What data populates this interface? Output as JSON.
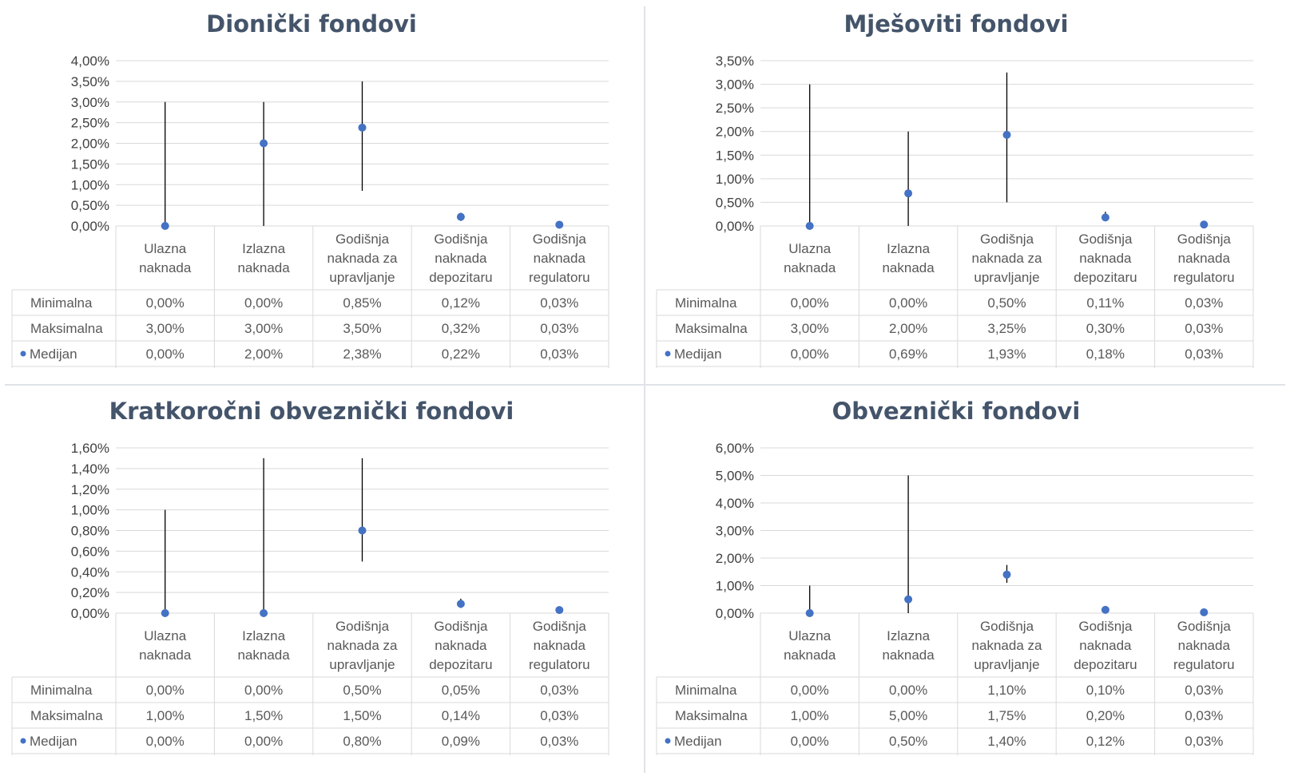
{
  "colors": {
    "marker": "#4472c4",
    "whisker": "#000000",
    "grid": "#d9d9d9",
    "title": "#44546a"
  },
  "row_labels": [
    "Minimalna",
    "Maksimalna",
    "Medijan"
  ],
  "chart_data": [
    {
      "type": "scatter",
      "title": "Dionički fondovi",
      "categories": [
        "Ulazna|naknada",
        "Izlazna|naknada",
        "Godišnja|naknada za|upravljanje",
        "Godišnja|naknada|depozitaru",
        "Godišnja|naknada|regulatoru"
      ],
      "ylim": [
        0,
        4.0
      ],
      "ystep": 0.5,
      "decimals": 2,
      "min": [
        0.0,
        0.0,
        0.85,
        0.12,
        0.03
      ],
      "max": [
        3.0,
        3.0,
        3.5,
        0.32,
        0.03
      ],
      "median": [
        0.0,
        2.0,
        2.38,
        0.22,
        0.03
      ],
      "grid": true,
      "legend": "table"
    },
    {
      "type": "scatter",
      "title": "Mješoviti fondovi",
      "categories": [
        "Ulazna|naknada",
        "Izlazna|naknada",
        "Godišnja|naknada za|upravljanje",
        "Godišnja|naknada|depozitaru",
        "Godišnja|naknada|regulatoru"
      ],
      "ylim": [
        0,
        3.5
      ],
      "ystep": 0.5,
      "decimals": 2,
      "min": [
        0.0,
        0.0,
        0.5,
        0.11,
        0.03
      ],
      "max": [
        3.0,
        2.0,
        3.25,
        0.3,
        0.03
      ],
      "median": [
        0.0,
        0.69,
        1.93,
        0.18,
        0.03
      ],
      "grid": true,
      "legend": "table"
    },
    {
      "type": "scatter",
      "title": "Kratkoročni obveznički fondovi",
      "categories": [
        "Ulazna|naknada",
        "Izlazna|naknada",
        "Godišnja|naknada za|upravljanje",
        "Godišnja|naknada|depozitaru",
        "Godišnja|naknada|regulatoru"
      ],
      "ylim": [
        0,
        1.6
      ],
      "ystep": 0.2,
      "decimals": 2,
      "min": [
        0.0,
        0.0,
        0.5,
        0.05,
        0.03
      ],
      "max": [
        1.0,
        1.5,
        1.5,
        0.14,
        0.03
      ],
      "median": [
        0.0,
        0.0,
        0.8,
        0.09,
        0.03
      ],
      "grid": true,
      "legend": "table"
    },
    {
      "type": "scatter",
      "title": "Obveznički fondovi",
      "categories": [
        "Ulazna|naknada",
        "Izlazna|naknada",
        "Godišnja|naknada za|upravljanje",
        "Godišnja|naknada|depozitaru",
        "Godišnja|naknada|regulatoru"
      ],
      "ylim": [
        0,
        6.0
      ],
      "ystep": 1.0,
      "decimals": 2,
      "min": [
        0.0,
        0.0,
        1.1,
        0.1,
        0.03
      ],
      "max": [
        1.0,
        5.0,
        1.75,
        0.2,
        0.03
      ],
      "median": [
        0.0,
        0.5,
        1.4,
        0.12,
        0.03
      ],
      "grid": true,
      "legend": "table"
    }
  ]
}
